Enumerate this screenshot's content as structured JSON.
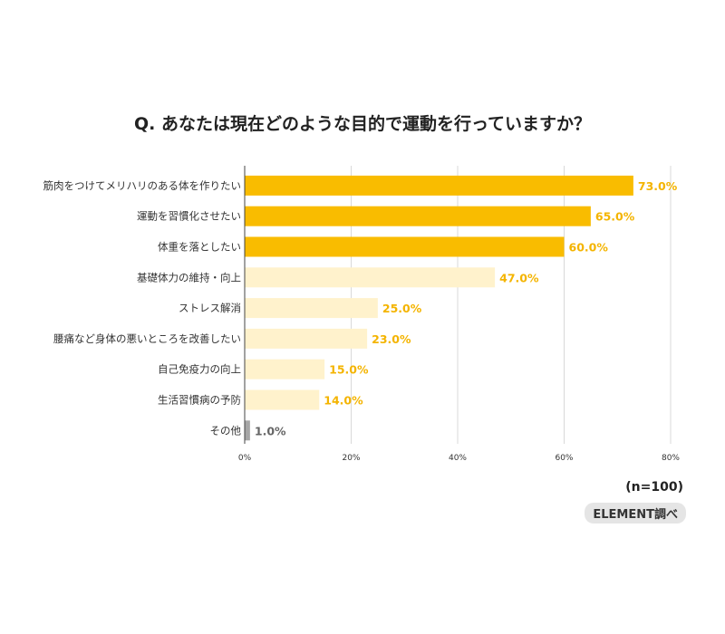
{
  "chart_data": {
    "type": "bar",
    "orientation": "horizontal",
    "title": "Q. あなたは現在どのような目的で運動を行っていますか？",
    "categories": [
      "筋肉をつけてメリハリのある体を作りたい",
      "運動を習慣化させたい",
      "体重を落としたい",
      "基礎体力の維持・向上",
      "ストレス解消",
      "腰痛など身体の悪いところを改善したい",
      "自己免疫力の向上",
      "生活習慣病の予防",
      "その他"
    ],
    "values": [
      73.0,
      65.0,
      60.0,
      47.0,
      25.0,
      23.0,
      15.0,
      14.0,
      1.0
    ],
    "value_labels": [
      "73.0%",
      "65.0%",
      "60.0%",
      "47.0%",
      "25.0%",
      "23.0%",
      "15.0%",
      "14.0%",
      "1.0%"
    ],
    "bar_colors": [
      "#f9bc00",
      "#f9bc00",
      "#f9bc00",
      "#fff2cc",
      "#fff2cc",
      "#fff2cc",
      "#fff2cc",
      "#fff2cc",
      "#a6a6a6"
    ],
    "label_colors": [
      "#f4b400",
      "#f4b400",
      "#f4b400",
      "#f4b400",
      "#f4b400",
      "#f4b400",
      "#f4b400",
      "#f4b400",
      "#666666"
    ],
    "xlim": [
      0,
      80
    ],
    "xticks": [
      0,
      20,
      40,
      60,
      80
    ],
    "xtick_labels": [
      "0%",
      "20%",
      "40%",
      "60%",
      "80%"
    ],
    "grid": true,
    "sample_size": "(n=100)",
    "source": "ELEMENT調べ"
  }
}
